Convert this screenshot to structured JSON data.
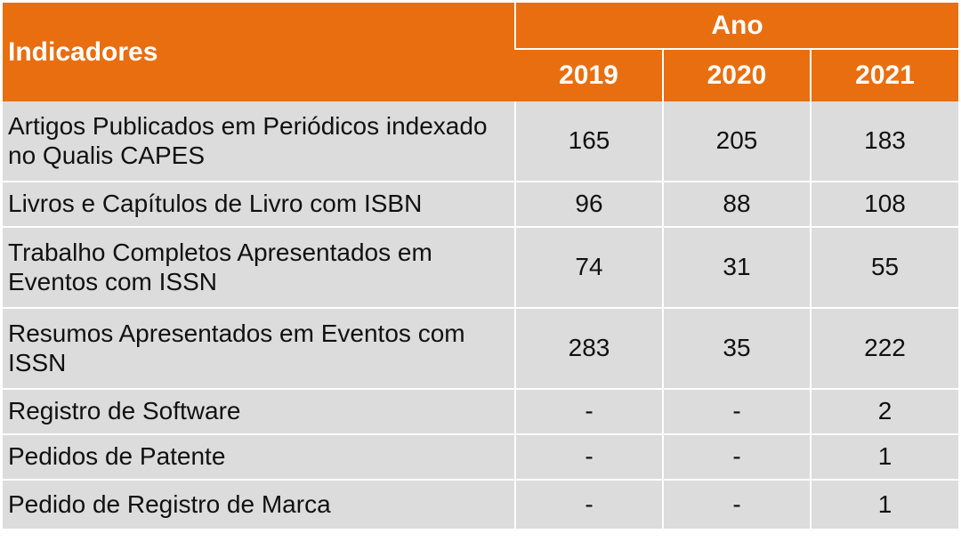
{
  "table": {
    "indicator_header": "Indicadores",
    "group_header": "Ano",
    "years": [
      "2019",
      "2020",
      "2021"
    ],
    "rows": [
      {
        "label": "Artigos Publicados em Periódicos indexado no Qualis CAPES",
        "values": [
          "165",
          "205",
          "183"
        ]
      },
      {
        "label": "Livros e Capítulos de Livro com ISBN",
        "values": [
          "96",
          "88",
          "108"
        ]
      },
      {
        "label": "Trabalho Completos Apresentados em Eventos com ISSN",
        "values": [
          "74",
          "31",
          "55"
        ]
      },
      {
        "label": "Resumos Apresentados em Eventos com ISSN",
        "values": [
          "283",
          "35",
          "222"
        ]
      },
      {
        "label": "Registro de Software",
        "values": [
          "-",
          "-",
          "2"
        ]
      },
      {
        "label": "Pedidos de Patente",
        "values": [
          "-",
          "-",
          "1"
        ]
      },
      {
        "label": "Pedido de Registro de Marca",
        "values": [
          "-",
          "-",
          "1"
        ]
      }
    ],
    "colors": {
      "header_bg": "#E96E0F",
      "header_text": "#ffffff",
      "row_bg": "#DCDCDC",
      "row_text": "#111111"
    }
  }
}
